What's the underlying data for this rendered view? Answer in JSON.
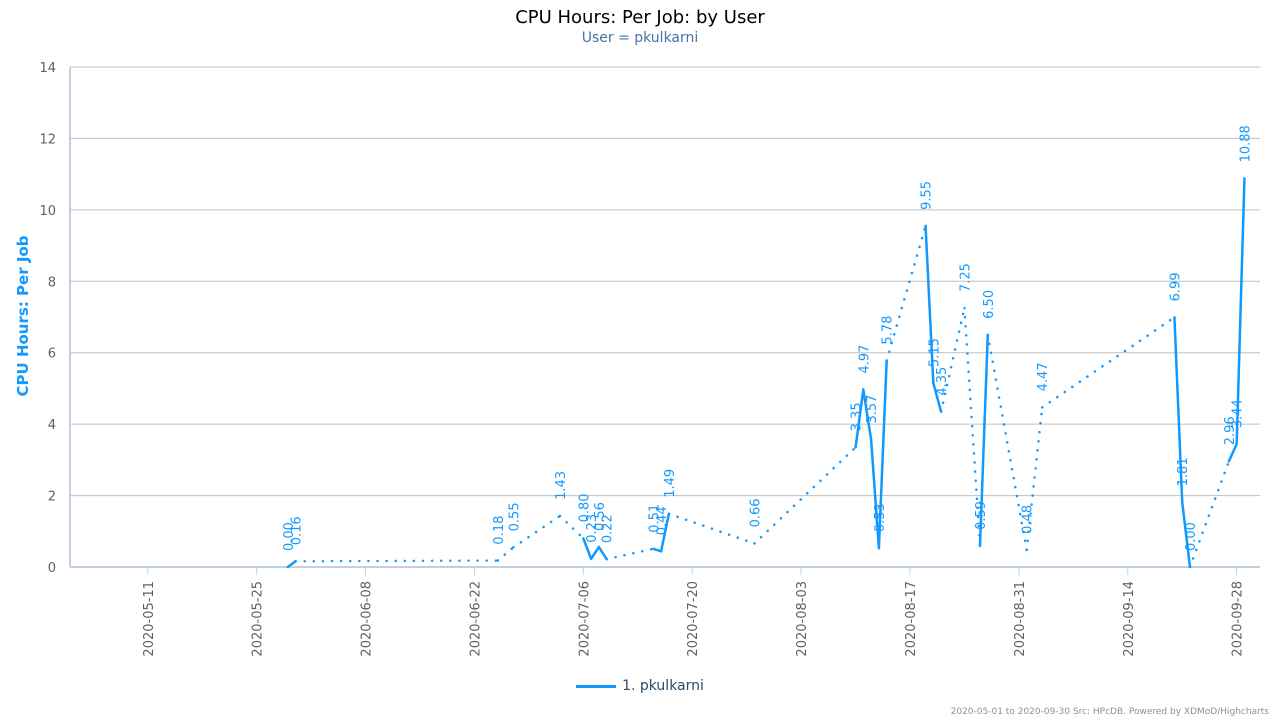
{
  "chart": {
    "title": "CPU Hours: Per Job: by User",
    "subtitle": "User = pkulkarni",
    "legend_label": "1. pkulkarni",
    "credits": "2020-05-01 to 2020-09-30 Src: HPcDB. Powered by XDMoD/Highcharts",
    "series_color": "#1199ff"
  },
  "chart_data": {
    "type": "line",
    "title": "CPU Hours: Per Job: by User",
    "subtitle": "User = pkulkarni",
    "ylabel": "CPU Hours: Per Job",
    "xlabel": "",
    "ylim": [
      0,
      14
    ],
    "yticks": [
      0,
      2,
      4,
      6,
      8,
      10,
      12,
      14
    ],
    "xlim": [
      "2020-05-01",
      "2020-09-30"
    ],
    "xticks": [
      "2020-05-11",
      "2020-05-25",
      "2020-06-08",
      "2020-06-22",
      "2020-07-06",
      "2020-07-20",
      "2020-08-03",
      "2020-08-17",
      "2020-08-31",
      "2020-09-14",
      "2020-09-28"
    ],
    "grid": true,
    "legend": "bottom-center",
    "dashed_gaps": true,
    "series": [
      {
        "name": "1. pkulkarni",
        "color": "#1199ff",
        "points": [
          {
            "date": "2020-05-29",
            "value": 0.0
          },
          {
            "date": "2020-05-30",
            "value": 0.16
          },
          {
            "date": "2020-06-25",
            "value": 0.18
          },
          {
            "date": "2020-06-27",
            "value": 0.55
          },
          {
            "date": "2020-07-03",
            "value": 1.43
          },
          {
            "date": "2020-07-06",
            "value": 0.8
          },
          {
            "date": "2020-07-07",
            "value": 0.23
          },
          {
            "date": "2020-07-08",
            "value": 0.56
          },
          {
            "date": "2020-07-09",
            "value": 0.22
          },
          {
            "date": "2020-07-15",
            "value": 0.51
          },
          {
            "date": "2020-07-16",
            "value": 0.44
          },
          {
            "date": "2020-07-17",
            "value": 1.49
          },
          {
            "date": "2020-07-28",
            "value": 0.66
          },
          {
            "date": "2020-08-10",
            "value": 3.35
          },
          {
            "date": "2020-08-11",
            "value": 4.97
          },
          {
            "date": "2020-08-12",
            "value": 3.57
          },
          {
            "date": "2020-08-13",
            "value": 0.53
          },
          {
            "date": "2020-08-14",
            "value": 5.78
          },
          {
            "date": "2020-08-19",
            "value": 9.55
          },
          {
            "date": "2020-08-20",
            "value": 5.15
          },
          {
            "date": "2020-08-21",
            "value": 4.35
          },
          {
            "date": "2020-08-24",
            "value": 7.25
          },
          {
            "date": "2020-08-26",
            "value": 0.59
          },
          {
            "date": "2020-08-27",
            "value": 6.5
          },
          {
            "date": "2020-09-01",
            "value": 0.48
          },
          {
            "date": "2020-09-03",
            "value": 4.47
          },
          {
            "date": "2020-09-20",
            "value": 6.99
          },
          {
            "date": "2020-09-21",
            "value": 1.81
          },
          {
            "date": "2020-09-22",
            "value": 0.0
          },
          {
            "date": "2020-09-27",
            "value": 2.96
          },
          {
            "date": "2020-09-28",
            "value": 3.44
          },
          {
            "date": "2020-09-29",
            "value": 10.88
          }
        ]
      }
    ]
  }
}
